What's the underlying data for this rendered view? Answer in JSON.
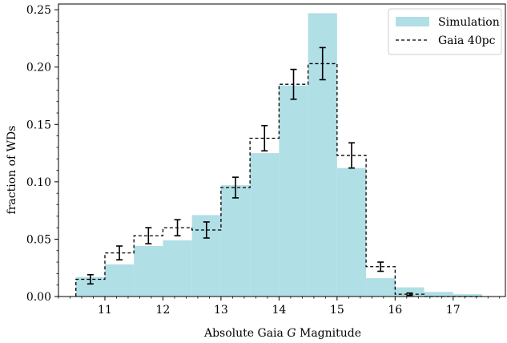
{
  "chart_data": {
    "type": "bar",
    "xlabel_prefix": "Absolute Gaia ",
    "xlabel_italic": "G",
    "xlabel_suffix": " Magnitude",
    "ylabel": "fraction of WDs",
    "xlim": [
      10.2,
      17.9
    ],
    "ylim": [
      0.0,
      0.255
    ],
    "xticks": [
      "11",
      "12",
      "13",
      "14",
      "15",
      "16",
      "17"
    ],
    "xtick_values": [
      11,
      12,
      13,
      14,
      15,
      16,
      17
    ],
    "yticks": [
      "0.00",
      "0.05",
      "0.10",
      "0.15",
      "0.20",
      "0.25"
    ],
    "ytick_values": [
      0.0,
      0.05,
      0.1,
      0.15,
      0.2,
      0.25
    ],
    "bin_edges": [
      10.5,
      11.0,
      11.5,
      12.0,
      12.5,
      13.0,
      13.5,
      14.0,
      14.5,
      15.0,
      15.5,
      16.0,
      16.5,
      17.0,
      17.5
    ],
    "legend": {
      "placement": "top-right",
      "simulation_label": "Simulation",
      "gaia_label": "Gaia 40pc"
    },
    "series": [
      {
        "name": "Simulation",
        "style": "filled-histogram",
        "color": "#b0dfe5",
        "values": [
          0.017,
          0.028,
          0.044,
          0.049,
          0.071,
          0.097,
          0.125,
          0.184,
          0.247,
          0.112,
          0.016,
          0.008,
          0.004,
          0.002
        ]
      },
      {
        "name": "Gaia 40pc",
        "style": "dashed-step",
        "color": "#000000",
        "values": [
          0.015,
          0.038,
          0.053,
          0.06,
          0.058,
          0.095,
          0.138,
          0.185,
          0.203,
          0.123,
          0.026,
          0.002,
          0.0,
          0.0
        ],
        "errors": [
          0.004,
          0.006,
          0.007,
          0.007,
          0.007,
          0.009,
          0.011,
          0.013,
          0.014,
          0.011,
          0.004,
          0.001,
          0.0,
          0.0
        ]
      }
    ]
  }
}
